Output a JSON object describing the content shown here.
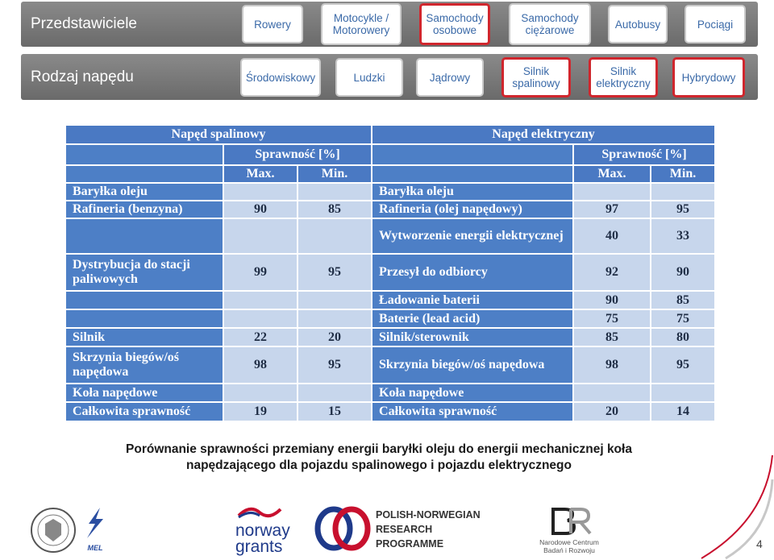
{
  "nav": {
    "row1": {
      "title": "Przedstawiciele",
      "buttons": [
        "Rowery",
        "Motocykle / Motorowery",
        "Samochody osobowe",
        "Samochody ciężarowe",
        "Autobusy",
        "Pociągi"
      ]
    },
    "row2": {
      "title": "Rodzaj napędu",
      "buttons": [
        "Środowiskowy",
        "Ludzki",
        "Jądrowy",
        "Silnik spalinowy",
        "Silnik elektryczny",
        "Hybrydowy"
      ]
    }
  },
  "table": {
    "left_title": "Napęd spalinowy",
    "right_title": "Napęd elektryczny",
    "eff_label": "Sprawność [%]",
    "max_label": "Max.",
    "min_label": "Min.",
    "rows": [
      {
        "l": "Baryłka oleju",
        "lmax": "",
        "lmin": "",
        "r": "Baryłka oleju",
        "rmax": "",
        "rmin": ""
      },
      {
        "l": "Rafineria (benzyna)",
        "lmax": "90",
        "lmin": "85",
        "r": "Rafineria (olej napędowy)",
        "rmax": "97",
        "rmin": "95"
      },
      {
        "l": "",
        "lmax": "",
        "lmin": "",
        "r": "Wytworzenie energii elektrycznej",
        "rmax": "40",
        "rmin": "33"
      },
      {
        "l": "Dystrybucja do stacji paliwowych",
        "lmax": "99",
        "lmin": "95",
        "r": "Przesył do odbiorcy",
        "rmax": "92",
        "rmin": "90"
      },
      {
        "l": "",
        "lmax": "",
        "lmin": "",
        "r": "Ładowanie baterii",
        "rmax": "90",
        "rmin": "85"
      },
      {
        "l": "",
        "lmax": "",
        "lmin": "",
        "r": "Baterie (lead acid)",
        "rmax": "75",
        "rmin": "75"
      },
      {
        "l": "Silnik",
        "lmax": "22",
        "lmin": "20",
        "r": "Silnik/sterownik",
        "rmax": "85",
        "rmin": "80"
      },
      {
        "l": "Skrzynia biegów/oś napędowa",
        "lmax": "98",
        "lmin": "95",
        "r": "Skrzynia biegów/oś napędowa",
        "rmax": "98",
        "rmin": "95"
      },
      {
        "l": "Koła napędowe",
        "lmax": "",
        "lmin": "",
        "r": "Koła napędowe",
        "rmax": "",
        "rmin": ""
      },
      {
        "l": "Całkowita sprawność",
        "lmax": "19",
        "lmin": "15",
        "r": "Całkowita sprawność",
        "rmax": "20",
        "rmin": "14"
      }
    ]
  },
  "caption": "Porównanie sprawności przemiany energii baryłki oleju do energii mechanicznej koła napędzającego dla pojazdu spalinowego i pojazdu elektrycznego",
  "footer": {
    "mel": "MEL",
    "norway_line1": "norway",
    "norway_line2": "grants",
    "pnrp_line1": "POLISH-NORWEGIAN",
    "pnrp_line2": "RESEARCH",
    "pnrp_line3": "PROGRAMME",
    "ncbr_line1": "Narodowe Centrum",
    "ncbr_line2": "Badań i Rozwoju",
    "page": "4"
  }
}
